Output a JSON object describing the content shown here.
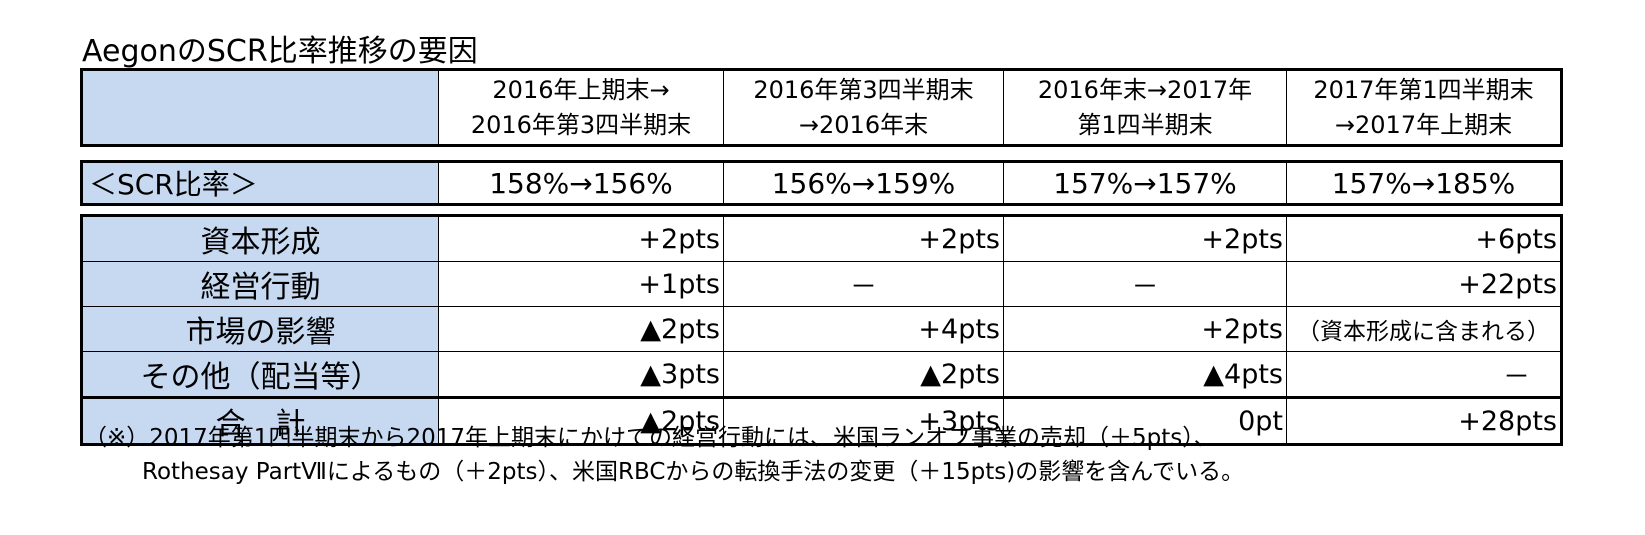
{
  "title": "AegonのSCR比率推移の要因",
  "columns": [
    {
      "line1": "2016年上期末→",
      "line2": "2016年第3四半期末"
    },
    {
      "line1": "2016年第3四半期末",
      "line2": "→2016年末"
    },
    {
      "line1": "2016年末→2017年",
      "line2": "第1四半期末"
    },
    {
      "line1": "2017年第1四半期末",
      "line2": "→2017年上期末"
    }
  ],
  "scr_ratio": {
    "label": "＜SCR比率＞",
    "values": [
      "158%→156%",
      "156%→159%",
      "157%→157%",
      "157%→185%"
    ]
  },
  "factors": [
    {
      "label": "資本形成",
      "values": [
        "+2pts",
        "+2pts",
        "+2pts",
        "+6pts"
      ]
    },
    {
      "label": "経営行動",
      "values": [
        "+1pts",
        "－",
        "－",
        "+22pts"
      ]
    },
    {
      "label": "市場の影響",
      "values": [
        "▲2pts",
        "+4pts",
        "+2pts",
        "（資本形成に含まれる）"
      ]
    },
    {
      "label": "その他（配当等）",
      "values": [
        "▲3pts",
        "▲2pts",
        "▲4pts",
        "－"
      ]
    }
  ],
  "total": {
    "label": "合　計",
    "values": [
      "▲2pts",
      "+3pts",
      "0pt",
      "+28pts"
    ]
  },
  "notes": [
    "（※）2017年第1四半期末から2017年上期末にかけての経営行動には、米国ランオフ事業の売却（＋5pts）、",
    "Rothesay PartⅦによるもの（＋2pts）、米国RBCからの転換手法の変更（＋15pts)の影響を含んでいる。"
  ],
  "colors": {
    "header_fill": "#c6d9f1",
    "border": "#000000"
  }
}
